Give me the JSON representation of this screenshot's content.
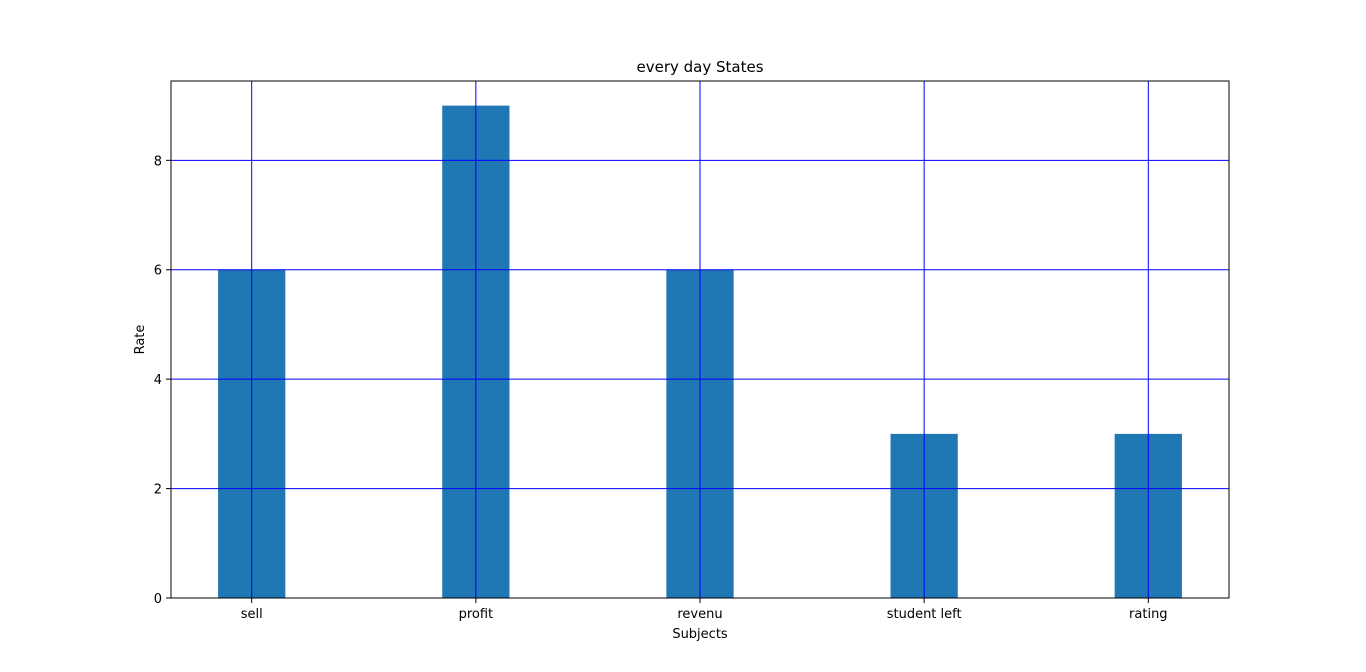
{
  "chart_data": {
    "type": "bar",
    "title": "every day States",
    "xlabel": "Subjects",
    "ylabel": "Rate",
    "categories": [
      "sell",
      "profit",
      "revenu",
      "student left",
      "rating"
    ],
    "values": [
      6,
      9,
      6,
      3,
      3
    ],
    "ylim": [
      0,
      9.45
    ],
    "yticks": [
      0,
      2,
      4,
      6,
      8
    ],
    "grid": true,
    "legend": "none",
    "colors": {
      "bar": "#1f77b4",
      "grid": "#0000ff",
      "axes": "#000000"
    }
  }
}
